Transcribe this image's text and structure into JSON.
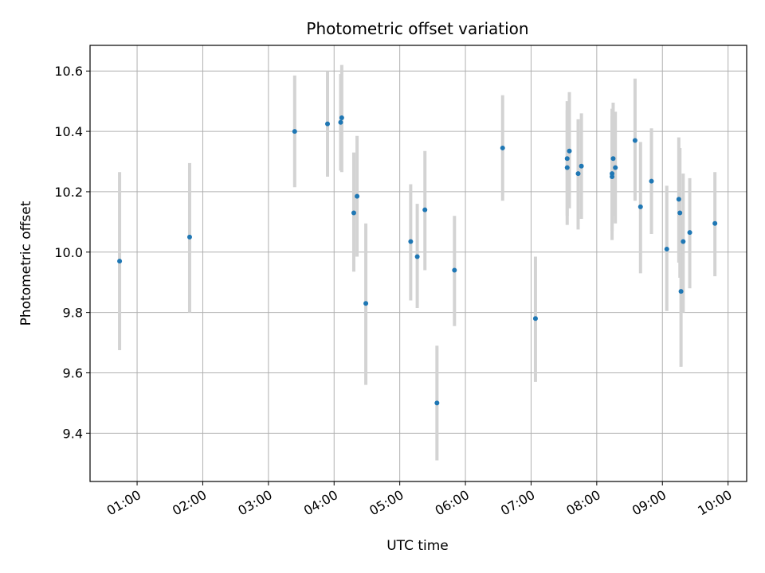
{
  "chart_data": {
    "type": "scatter",
    "title": "Photometric offset variation",
    "xlabel": "UTC time",
    "ylabel": "Photometric offset",
    "x_unit": "hours UTC",
    "xlim": [
      "00:17",
      "10:17"
    ],
    "ylim": [
      9.24,
      10.685
    ],
    "x_ticks": [
      "01:00",
      "02:00",
      "03:00",
      "04:00",
      "05:00",
      "06:00",
      "07:00",
      "08:00",
      "09:00",
      "10:00"
    ],
    "y_ticks": [
      "9.4",
      "9.6",
      "9.8",
      "10.0",
      "10.2",
      "10.4",
      "10.6"
    ],
    "grid": true,
    "marker_color": "#1f77b4",
    "errorbar_color": "#d3d3d3",
    "points": [
      {
        "t": "00:44",
        "y": 9.97,
        "lo": 9.675,
        "hi": 10.265
      },
      {
        "t": "01:48",
        "y": 10.05,
        "lo": 9.8,
        "hi": 10.295
      },
      {
        "t": "03:24",
        "y": 10.4,
        "lo": 10.215,
        "hi": 10.585
      },
      {
        "t": "03:54",
        "y": 10.425,
        "lo": 10.25,
        "hi": 10.6
      },
      {
        "t": "04:06",
        "y": 10.43,
        "lo": 10.27,
        "hi": 10.59
      },
      {
        "t": "04:07",
        "y": 10.445,
        "lo": 10.265,
        "hi": 10.62
      },
      {
        "t": "04:18",
        "y": 10.13,
        "lo": 9.935,
        "hi": 10.33
      },
      {
        "t": "04:21",
        "y": 10.185,
        "lo": 9.985,
        "hi": 10.385
      },
      {
        "t": "04:29",
        "y": 9.83,
        "lo": 9.56,
        "hi": 10.095
      },
      {
        "t": "05:10",
        "y": 10.035,
        "lo": 9.84,
        "hi": 10.225
      },
      {
        "t": "05:16",
        "y": 9.985,
        "lo": 9.815,
        "hi": 10.16
      },
      {
        "t": "05:23",
        "y": 10.14,
        "lo": 9.94,
        "hi": 10.335
      },
      {
        "t": "05:34",
        "y": 9.5,
        "lo": 9.31,
        "hi": 9.69
      },
      {
        "t": "05:50",
        "y": 9.94,
        "lo": 9.755,
        "hi": 10.12
      },
      {
        "t": "06:34",
        "y": 10.345,
        "lo": 10.17,
        "hi": 10.52
      },
      {
        "t": "07:04",
        "y": 9.78,
        "lo": 9.57,
        "hi": 9.985
      },
      {
        "t": "07:33",
        "y": 10.31,
        "lo": 10.12,
        "hi": 10.5
      },
      {
        "t": "07:33",
        "y": 10.28,
        "lo": 10.09,
        "hi": 10.47
      },
      {
        "t": "07:35",
        "y": 10.335,
        "lo": 10.145,
        "hi": 10.53
      },
      {
        "t": "07:43",
        "y": 10.26,
        "lo": 10.075,
        "hi": 10.44
      },
      {
        "t": "07:46",
        "y": 10.285,
        "lo": 10.11,
        "hi": 10.46
      },
      {
        "t": "08:14",
        "y": 10.26,
        "lo": 10.07,
        "hi": 10.45
      },
      {
        "t": "08:14",
        "y": 10.25,
        "lo": 10.04,
        "hi": 10.475
      },
      {
        "t": "08:15",
        "y": 10.31,
        "lo": 10.12,
        "hi": 10.495
      },
      {
        "t": "08:17",
        "y": 10.28,
        "lo": 10.095,
        "hi": 10.465
      },
      {
        "t": "08:35",
        "y": 10.37,
        "lo": 10.17,
        "hi": 10.575
      },
      {
        "t": "08:40",
        "y": 10.15,
        "lo": 9.93,
        "hi": 10.365
      },
      {
        "t": "08:50",
        "y": 10.235,
        "lo": 10.06,
        "hi": 10.41
      },
      {
        "t": "09:04",
        "y": 10.01,
        "lo": 9.805,
        "hi": 10.22
      },
      {
        "t": "09:15",
        "y": 10.175,
        "lo": 9.965,
        "hi": 10.38
      },
      {
        "t": "09:16",
        "y": 10.13,
        "lo": 9.915,
        "hi": 10.345
      },
      {
        "t": "09:17",
        "y": 9.87,
        "lo": 9.62,
        "hi": 10.12
      },
      {
        "t": "09:19",
        "y": 10.035,
        "lo": 9.8,
        "hi": 10.26
      },
      {
        "t": "09:25",
        "y": 10.065,
        "lo": 9.88,
        "hi": 10.245
      },
      {
        "t": "09:48",
        "y": 10.095,
        "lo": 9.92,
        "hi": 10.265
      }
    ]
  }
}
